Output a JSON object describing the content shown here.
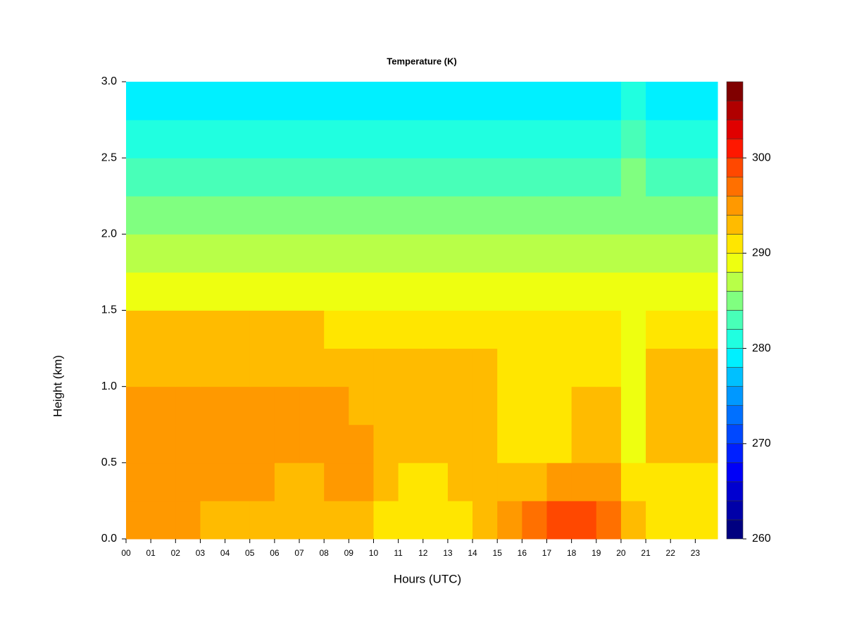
{
  "chart_data": {
    "type": "heatmap",
    "title": "Temperature (K)",
    "xlabel": "Hours (UTC)",
    "ylabel": "Height (km)",
    "x": [
      0,
      1,
      2,
      3,
      4,
      5,
      6,
      7,
      8,
      9,
      10,
      11,
      12,
      13,
      14,
      15,
      16,
      17,
      18,
      19,
      20,
      21,
      22,
      23
    ],
    "y": [
      0,
      0.25,
      0.5,
      0.75,
      1.0,
      1.25,
      1.5,
      1.75,
      2.0,
      2.25,
      2.5,
      2.75
    ],
    "z": [
      [
        294,
        294,
        294,
        293,
        293,
        293,
        292,
        292,
        293,
        292,
        290,
        290,
        290,
        291,
        293,
        295,
        297,
        299,
        298,
        297,
        292,
        291,
        291,
        291
      ],
      [
        294,
        294,
        294,
        294,
        294,
        294,
        293,
        293,
        294,
        294,
        292,
        291,
        291,
        292,
        292,
        292,
        293,
        294,
        294,
        294,
        291,
        290,
        290,
        290
      ],
      [
        295,
        295,
        295,
        295,
        295,
        295,
        294,
        294,
        295,
        294,
        293,
        292,
        292,
        292,
        292,
        291,
        291,
        291,
        292,
        292,
        289,
        292,
        292,
        292
      ],
      [
        294,
        294,
        294,
        294,
        294,
        294,
        294,
        294,
        294,
        293,
        293,
        292,
        292,
        292,
        292,
        291,
        291,
        290,
        292,
        292,
        289,
        292,
        292,
        292
      ],
      [
        293,
        293,
        293,
        293,
        293,
        293,
        293,
        293,
        293,
        293,
        292,
        292,
        292,
        292,
        292,
        291,
        291,
        290,
        290,
        291,
        289,
        292,
        292,
        292
      ],
      [
        292,
        292,
        292,
        292,
        292,
        292,
        292,
        292,
        291,
        291,
        291,
        291,
        291,
        291,
        290,
        290,
        290,
        290,
        290,
        290,
        289,
        291,
        291,
        291
      ],
      [
        289,
        289,
        289,
        289,
        289,
        289,
        289,
        289,
        289,
        289,
        289,
        289,
        289,
        289,
        289,
        288,
        288,
        288,
        288,
        288,
        288,
        288,
        288,
        288
      ],
      [
        287,
        287,
        287,
        287,
        287,
        287,
        287,
        287,
        287,
        287,
        287,
        287,
        287,
        287,
        286,
        286,
        286,
        286,
        286,
        286,
        286,
        286,
        286,
        286
      ],
      [
        285,
        285,
        285,
        285,
        285,
        285,
        285,
        285,
        285,
        285,
        285,
        285,
        285,
        285,
        285,
        284,
        284,
        284,
        284,
        284,
        285,
        284,
        284,
        284
      ],
      [
        283,
        283,
        283,
        283,
        283,
        283,
        283,
        283,
        283,
        283,
        283,
        283,
        283,
        283,
        282,
        282,
        282,
        282,
        282,
        282,
        284,
        282,
        282,
        282
      ],
      [
        281,
        281,
        281,
        281,
        281,
        281,
        281,
        281,
        280,
        280,
        280,
        280,
        280,
        280,
        280,
        280,
        280,
        280,
        280,
        280,
        283,
        280,
        280,
        280
      ],
      [
        279,
        279,
        279,
        279,
        279,
        279,
        279,
        279,
        278,
        278,
        278,
        278,
        278,
        278,
        278,
        278,
        278,
        278,
        278,
        278,
        281,
        278,
        278,
        278
      ]
    ],
    "levels": [
      260,
      262,
      264,
      266,
      268,
      270,
      272,
      274,
      276,
      278,
      280,
      282,
      284,
      286,
      288,
      290,
      292,
      294,
      296,
      298,
      300,
      302,
      304,
      306,
      308
    ],
    "colors": [
      "#000080",
      "#0000a8",
      "#0000d0",
      "#0000f8",
      "#0020ff",
      "#0048ff",
      "#0070ff",
      "#0098ff",
      "#00c0ff",
      "#00f0ff",
      "#20ffe0",
      "#48ffb8",
      "#80ff80",
      "#b8ff48",
      "#eeff10",
      "#ffe600",
      "#ffbb00",
      "#ff9900",
      "#ff7000",
      "#ff4800",
      "#ff1800",
      "#e00000",
      "#b00000",
      "#800000"
    ],
    "xlim": [
      0,
      23.9
    ],
    "ylim": [
      0,
      3.0
    ],
    "xticks": [
      {
        "value": 0,
        "label": "00"
      },
      {
        "value": 1,
        "label": "01"
      },
      {
        "value": 2,
        "label": "02"
      },
      {
        "value": 3,
        "label": "03"
      },
      {
        "value": 4,
        "label": "04"
      },
      {
        "value": 5,
        "label": "05"
      },
      {
        "value": 6,
        "label": "06"
      },
      {
        "value": 7,
        "label": "07"
      },
      {
        "value": 8,
        "label": "08"
      },
      {
        "value": 9,
        "label": "09"
      },
      {
        "value": 10,
        "label": "10"
      },
      {
        "value": 11,
        "label": "11"
      },
      {
        "value": 12,
        "label": "12"
      },
      {
        "value": 13,
        "label": "13"
      },
      {
        "value": 14,
        "label": "14"
      },
      {
        "value": 15,
        "label": "15"
      },
      {
        "value": 16,
        "label": "16"
      },
      {
        "value": 17,
        "label": "17"
      },
      {
        "value": 18,
        "label": "18"
      },
      {
        "value": 19,
        "label": "19"
      },
      {
        "value": 20,
        "label": "20"
      },
      {
        "value": 21,
        "label": "21"
      },
      {
        "value": 22,
        "label": "22"
      },
      {
        "value": 23,
        "label": "23"
      }
    ],
    "yticks": [
      {
        "value": 0,
        "label": "0.0"
      },
      {
        "value": 0.5,
        "label": "0.5"
      },
      {
        "value": 1.0,
        "label": "1.0"
      },
      {
        "value": 1.5,
        "label": "1.5"
      },
      {
        "value": 2.0,
        "label": "2.0"
      },
      {
        "value": 2.5,
        "label": "2.5"
      },
      {
        "value": 3.0,
        "label": "3.0"
      }
    ],
    "colorbar_ticks": [
      260,
      270,
      280,
      290,
      300
    ]
  }
}
